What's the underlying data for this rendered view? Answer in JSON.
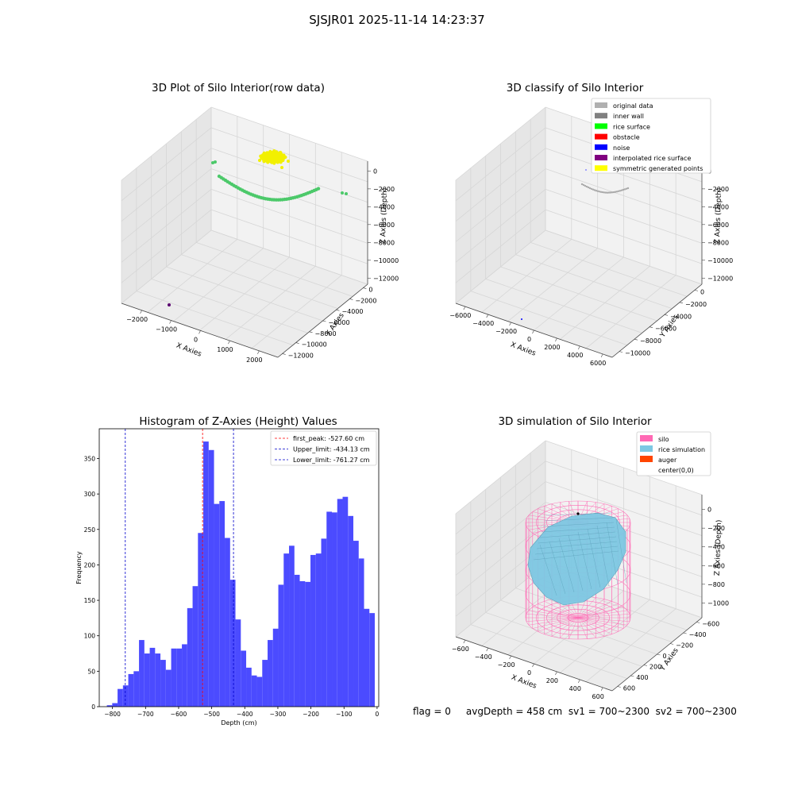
{
  "figure": {
    "title": "SJSJR01 2025-11-14 14:23:37",
    "footer": "flag = 0     avgDepth = 458 cm  sv1 = 700~2300  sv2 = 700~2300"
  },
  "colors": {
    "green_points": "#4cc96a",
    "yellow_points": "#f2f000",
    "purple_point": "#5a0070",
    "hist_bar": "#4b4bff",
    "first_peak": "#ff0000",
    "limits": "#0000cc",
    "silo": "#ff69b4",
    "rice": "#7ec8e3",
    "auger": "#ff4500",
    "pane": "#f2f2f2",
    "grid": "#d6d6d6"
  },
  "chart_data": [
    {
      "type": "scatter",
      "title": "3D Plot of Silo Interior(row data)",
      "xlabel": "X Axies",
      "ylabel": "Y Axies",
      "zlabel": "Z Axies (Depth)",
      "x_ticks": [
        "−2000",
        "−1000",
        "0",
        "1000",
        "2000"
      ],
      "y_ticks": [
        "0",
        "−2000",
        "−4000",
        "−6000",
        "−8000",
        "−10000",
        "−12000"
      ],
      "z_ticks": [
        "0",
        "−2000",
        "−4000",
        "−6000",
        "−8000",
        "−10000",
        "−12000"
      ]
    },
    {
      "type": "scatter",
      "title": "3D classify of Silo Interior",
      "xlabel": "X Axies",
      "ylabel": "Y Axies",
      "zlabel": "Z Axies (Depth)",
      "x_ticks": [
        "−6000",
        "−4000",
        "−2000",
        "0",
        "2000",
        "4000",
        "6000"
      ],
      "y_ticks": [
        "0",
        "−2000",
        "−4000",
        "−6000",
        "−8000",
        "−10000"
      ],
      "z_ticks": [
        "0",
        "−2000",
        "−4000",
        "−6000",
        "−8000",
        "−10000",
        "−12000"
      ],
      "legend": [
        {
          "label": "original data",
          "color": "#b0b0b0"
        },
        {
          "label": "inner wall",
          "color": "#808080"
        },
        {
          "label": "rice surface",
          "color": "#00ff00"
        },
        {
          "label": "obstacle",
          "color": "#ff0000"
        },
        {
          "label": "noise",
          "color": "#0000ff"
        },
        {
          "label": "interpolated rice surface",
          "color": "#800080"
        },
        {
          "label": "symmetric generated points",
          "color": "#ffff00"
        }
      ],
      "legend_position": "top-right"
    },
    {
      "type": "bar",
      "title": "Histogram of Z-Axies (Height) Values",
      "xlabel": "Depth (cm)",
      "ylabel": "Frequency",
      "xlim": [
        -840,
        5
      ],
      "ylim": [
        0,
        392
      ],
      "x_ticks": [
        -800,
        -700,
        -600,
        -500,
        -400,
        -300,
        -200,
        -100,
        0
      ],
      "y_ticks": [
        0,
        50,
        100,
        150,
        200,
        250,
        300,
        350
      ],
      "bin_start": -817,
      "bin_width": 16.2,
      "values": [
        2,
        5,
        25,
        30,
        46,
        50,
        94,
        75,
        83,
        75,
        66,
        52,
        82,
        82,
        88,
        139,
        170,
        245,
        374,
        362,
        286,
        290,
        238,
        179,
        123,
        79,
        55,
        44,
        42,
        66,
        94,
        110,
        172,
        216,
        227,
        186,
        177,
        176,
        214,
        216,
        237,
        275,
        274,
        293,
        296,
        269,
        234,
        209,
        138,
        132
      ],
      "vlines": [
        {
          "label": "first_peak: -527.60 cm",
          "x": -527.6,
          "style": "red"
        },
        {
          "label": "Upper_limit: -434.13 cm",
          "x": -434.13,
          "style": "blue"
        },
        {
          "label": "Lower_limit: -761.27 cm",
          "x": -761.27,
          "style": "blue"
        }
      ],
      "legend_position": "top-right"
    },
    {
      "type": "surface",
      "title": "3D simulation of Silo Interior",
      "xlabel": "X Axies",
      "ylabel": "Y Axies",
      "zlabel": "Z Axies (Depth)",
      "x_ticks": [
        "−600",
        "−400",
        "−200",
        "0",
        "200",
        "400",
        "600"
      ],
      "y_ticks": [
        "600",
        "400",
        "200",
        "0",
        "−200",
        "−400",
        "−600"
      ],
      "z_ticks": [
        "0",
        "−200",
        "−400",
        "−600",
        "−800",
        "−1000"
      ],
      "legend": [
        {
          "label": "silo",
          "color": "#ff69b4"
        },
        {
          "label": "rice simulation",
          "color": "#7ec8e3"
        },
        {
          "label": "auger",
          "color": "#ff4500"
        },
        {
          "label": "center(0,0)",
          "color": ""
        }
      ],
      "legend_position": "top-right"
    }
  ]
}
